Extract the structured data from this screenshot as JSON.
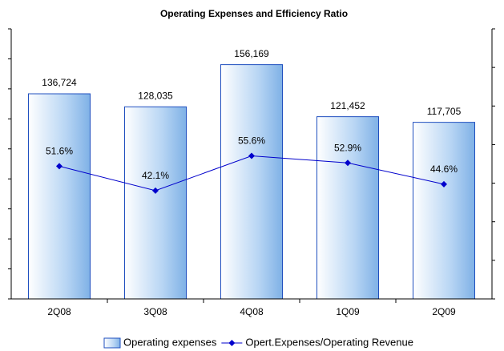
{
  "chart_data": {
    "type": "bar+line",
    "title": "Operating Expenses  and Efficiency Ratio",
    "categories": [
      "2Q08",
      "3Q08",
      "4Q08",
      "1Q09",
      "2Q09"
    ],
    "series": [
      {
        "name": "Operating expenses",
        "type": "bar",
        "color": "#9cc3ec",
        "values": [
          136724,
          128035,
          156169,
          121452,
          117705
        ],
        "value_labels": [
          "136,724",
          "128,035",
          "156,169",
          "121,452",
          "117,705"
        ]
      },
      {
        "name": "Opert.Expenses/Operating Revenue",
        "type": "line",
        "axis": "y2",
        "color": "#0000cc",
        "values": [
          51.6,
          42.1,
          55.6,
          52.9,
          44.6
        ],
        "value_labels": [
          "51.6%",
          "42.1%",
          "55.6%",
          "52.9%",
          "44.6%"
        ]
      }
    ],
    "ylim": [
      0,
      180000
    ],
    "yticks": [
      0,
      20000,
      40000,
      60000,
      80000,
      100000,
      120000,
      140000,
      160000,
      180000
    ],
    "y2lim": [
      0,
      105
    ],
    "y2ticks": [
      0,
      15,
      30,
      45,
      60,
      75,
      90,
      105
    ],
    "legend": "bottom"
  }
}
